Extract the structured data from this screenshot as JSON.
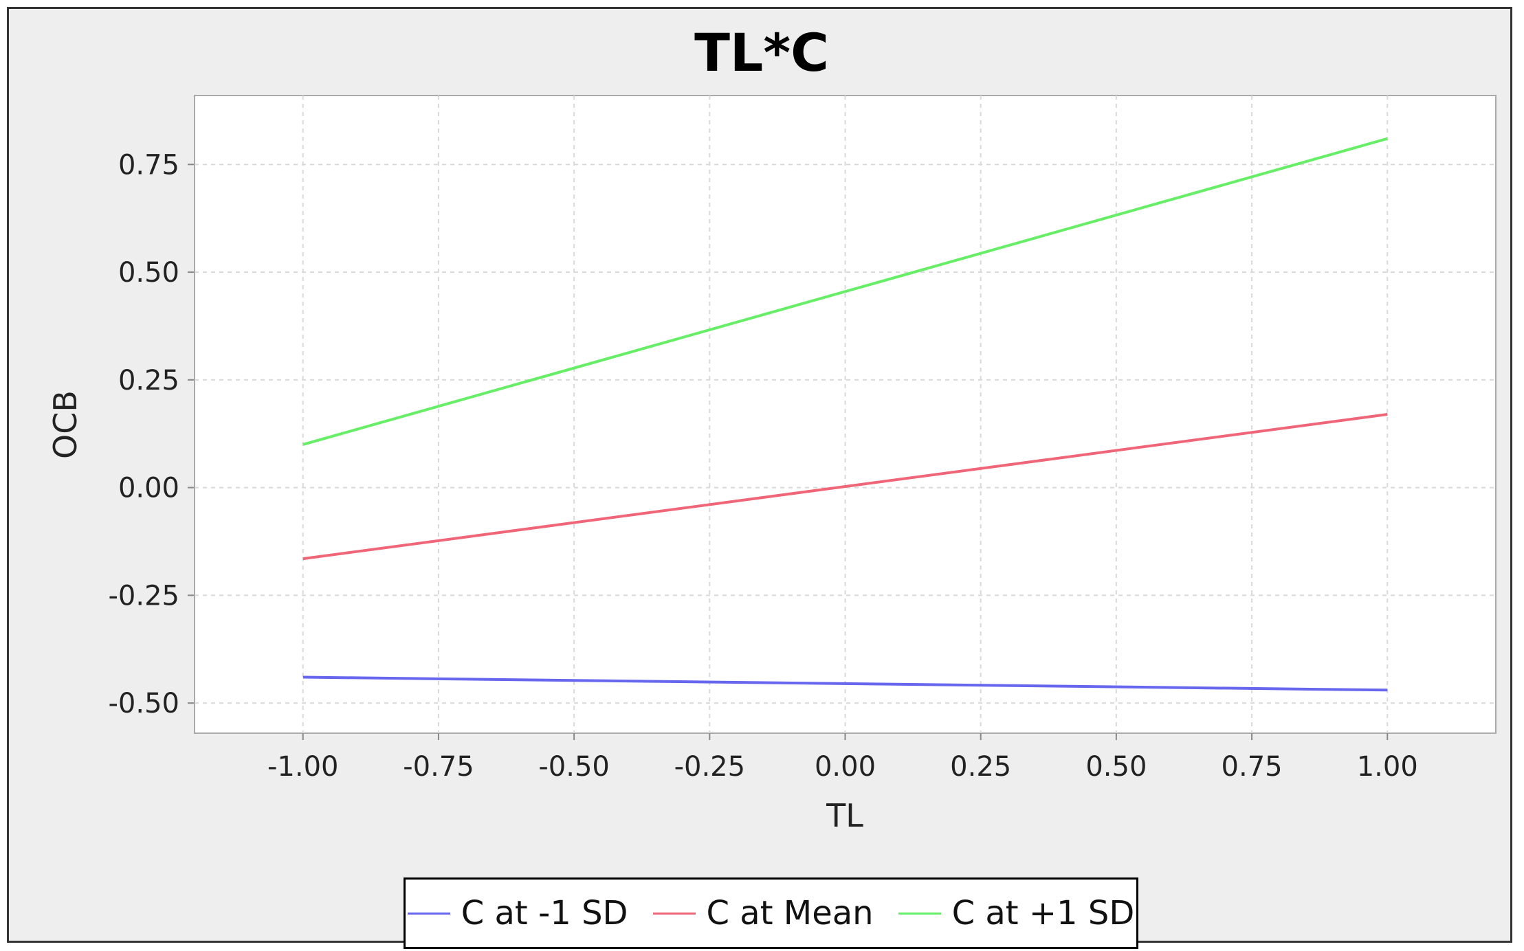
{
  "chart_data": {
    "type": "line",
    "title": "TL*C",
    "xlabel": "TL",
    "ylabel": "OCB",
    "x": [
      -1.0,
      1.0
    ],
    "xlim": [
      -1.2,
      1.2
    ],
    "ylim": [
      -0.57,
      0.91
    ],
    "xticks": [
      -1.0,
      -0.75,
      -0.5,
      -0.25,
      0.0,
      0.25,
      0.5,
      0.75,
      1.0
    ],
    "xtick_labels": [
      "-1.00",
      "-0.75",
      "-0.50",
      "-0.25",
      "0.00",
      "0.25",
      "0.50",
      "0.75",
      "1.00"
    ],
    "yticks": [
      -0.5,
      -0.25,
      0.0,
      0.25,
      0.5,
      0.75
    ],
    "ytick_labels": [
      "-0.50",
      "-0.25",
      "0.00",
      "0.25",
      "0.50",
      "0.75"
    ],
    "grid": true,
    "legend_position": "bottom",
    "series": [
      {
        "name": "C at -1 SD",
        "color": "#6666ee",
        "values": [
          -0.44,
          -0.47
        ]
      },
      {
        "name": "C at Mean",
        "color": "#ee6677",
        "values": [
          -0.165,
          0.17
        ]
      },
      {
        "name": "C at +1 SD",
        "color": "#66ee66",
        "values": [
          0.1,
          0.81
        ]
      }
    ]
  }
}
